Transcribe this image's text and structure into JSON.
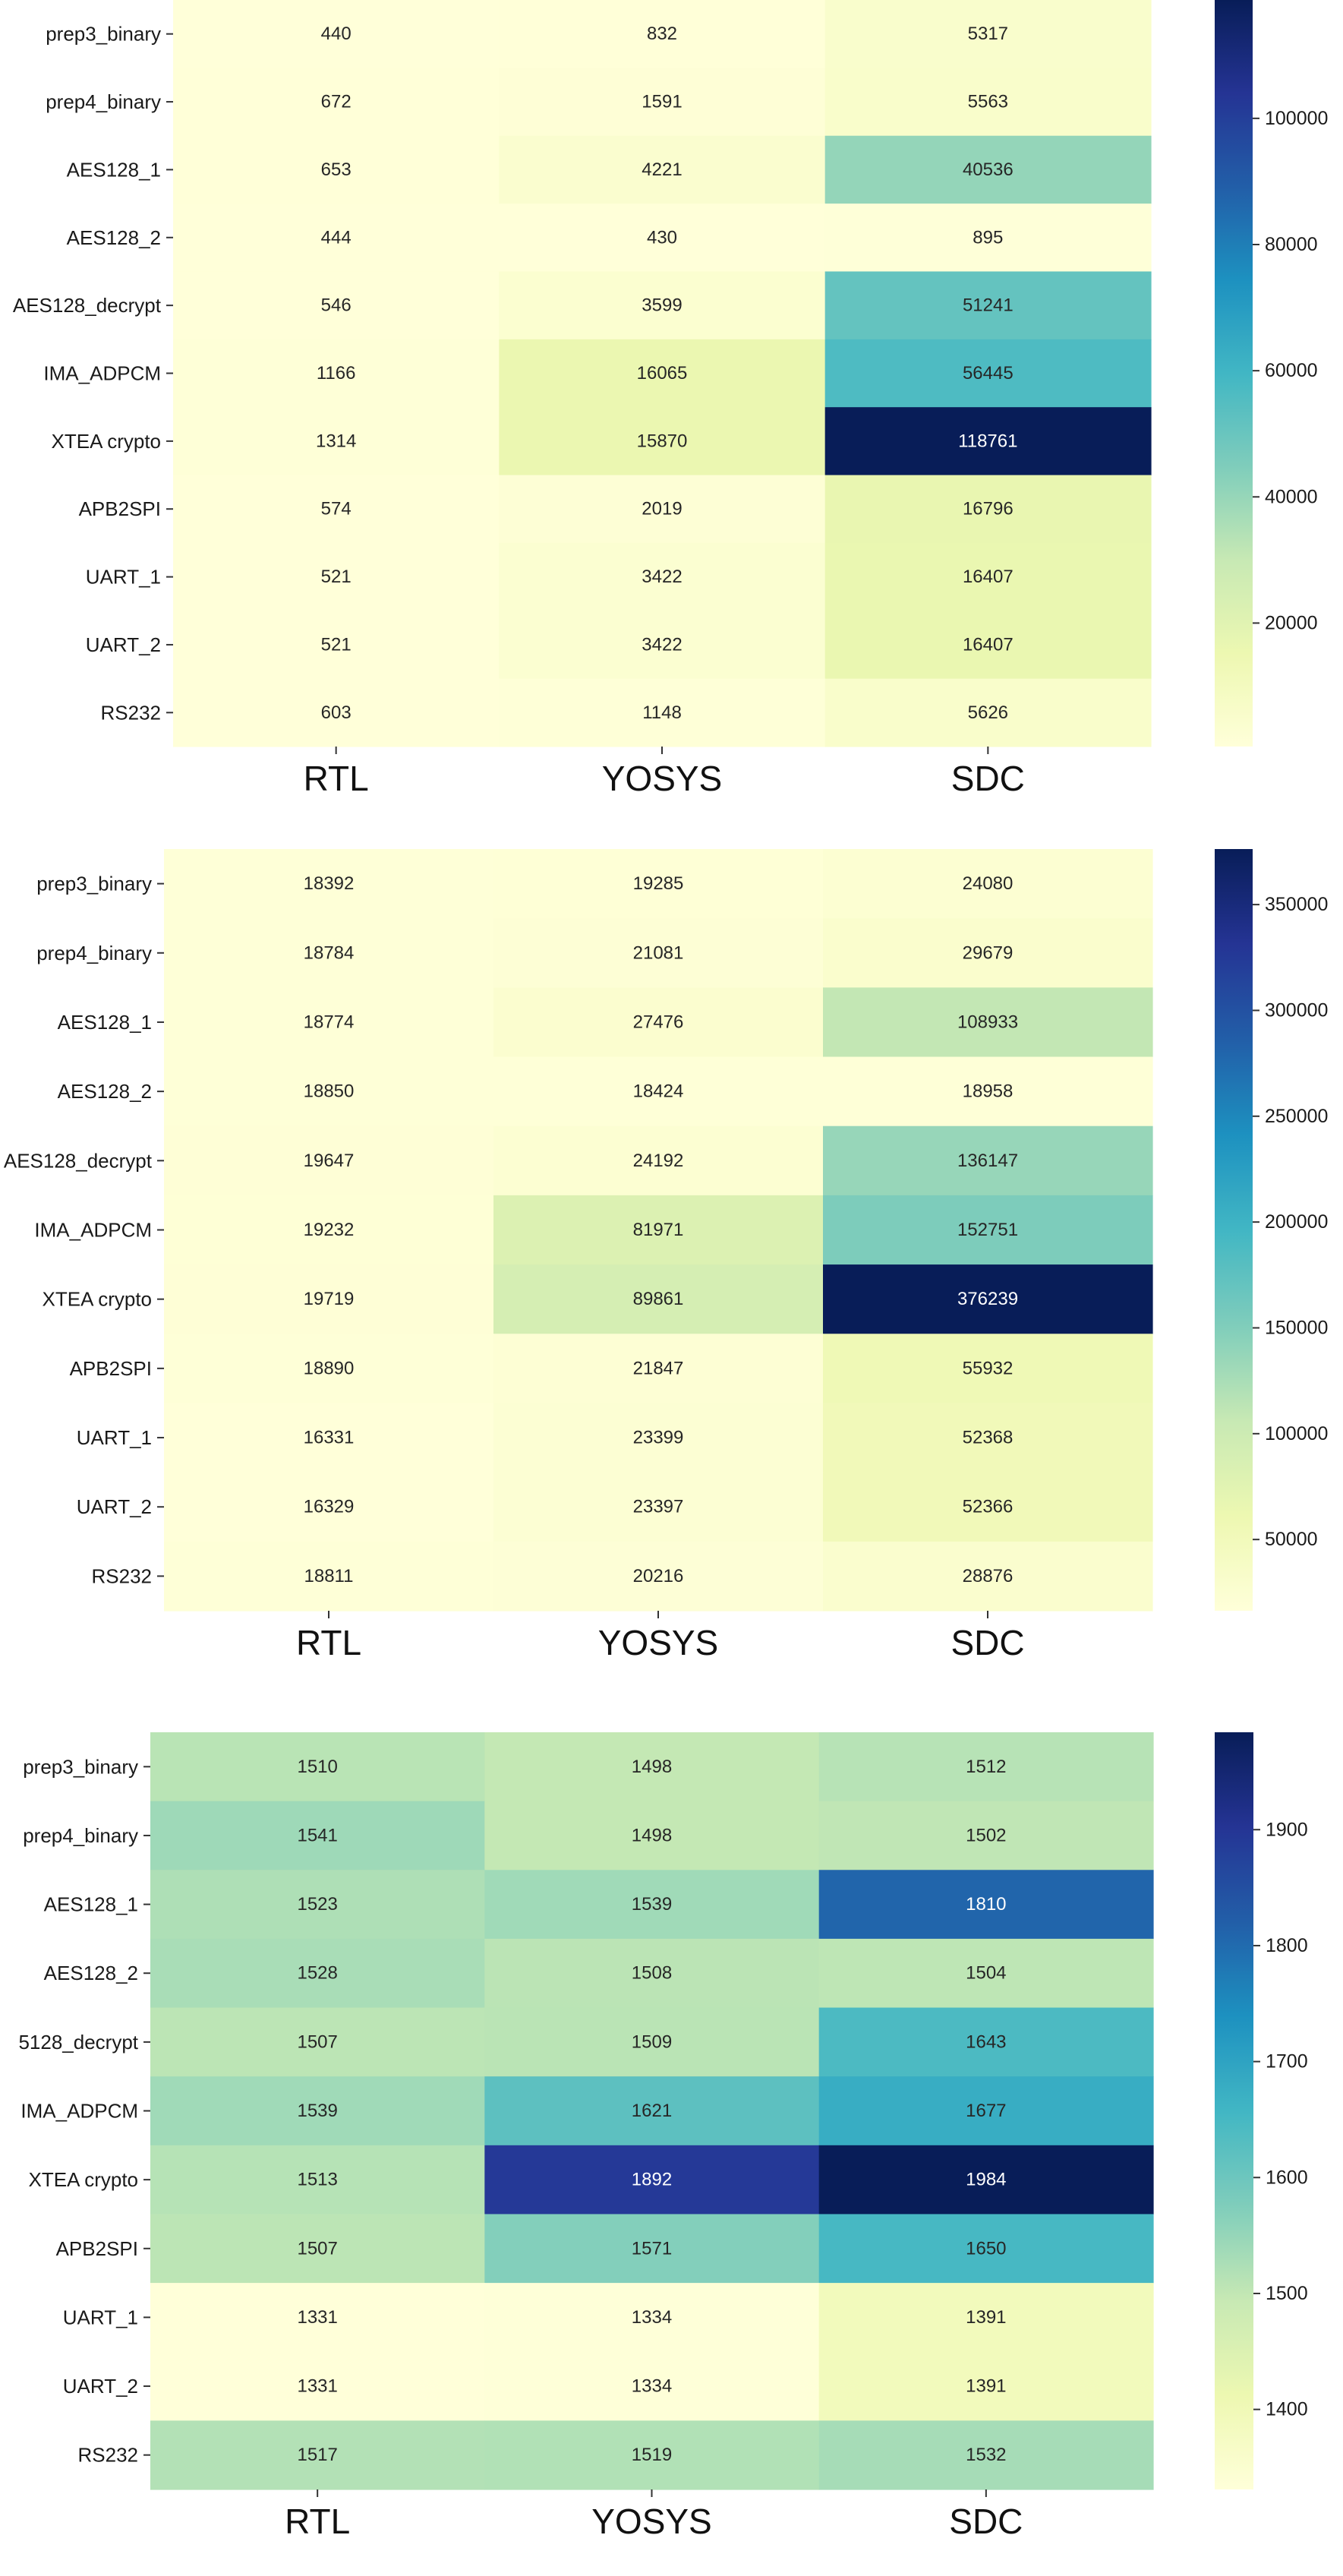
{
  "chart_data": [
    {
      "type": "heatmap",
      "title": "",
      "rows": [
        "prep3_binary",
        "prep4_binary",
        "AES128_1",
        "AES128_2",
        "AES128_decrypt",
        "IMA_ADPCM",
        "XTEA crypto",
        "APB2SPI",
        "UART_1",
        "UART_2",
        "RS232"
      ],
      "columns": [
        "RTL",
        "YOSYS",
        "SDC"
      ],
      "values": [
        [
          440,
          832,
          5317
        ],
        [
          672,
          1591,
          5563
        ],
        [
          653,
          4221,
          40536
        ],
        [
          444,
          430,
          895
        ],
        [
          546,
          3599,
          51241
        ],
        [
          1166,
          16065,
          56445
        ],
        [
          1314,
          15870,
          118761
        ],
        [
          574,
          2019,
          16796
        ],
        [
          521,
          3422,
          16407
        ],
        [
          521,
          3422,
          16407
        ],
        [
          603,
          1148,
          5626
        ]
      ],
      "value_labels": [
        [
          "440",
          "832",
          "5317"
        ],
        [
          "672",
          "1591",
          "5563"
        ],
        [
          "653",
          "4221",
          "40536"
        ],
        [
          "444",
          "430",
          "895"
        ],
        [
          "546",
          "3599",
          "51241"
        ],
        [
          "1166",
          "16065",
          "56445"
        ],
        [
          "1314",
          "15870",
          "118761"
        ],
        [
          "574",
          "2019",
          "16796"
        ],
        [
          "521",
          "3422",
          "16407"
        ],
        [
          "521",
          "3422",
          "16407"
        ],
        [
          "603",
          "1148",
          "5626"
        ]
      ],
      "colorbar": {
        "vmin": 430,
        "vmax": 118761,
        "ticks": [
          20000,
          40000,
          60000,
          80000,
          100000
        ],
        "tick_labels": [
          "20000",
          "40000",
          "60000",
          "80000",
          "100000"
        ]
      },
      "colormap": "YlGnBu"
    },
    {
      "type": "heatmap",
      "title": "",
      "rows": [
        "prep3_binary",
        "prep4_binary",
        "AES128_1",
        "AES128_2",
        "AES128_decrypt",
        "IMA_ADPCM",
        "XTEA crypto",
        "APB2SPI",
        "UART_1",
        "UART_2",
        "RS232"
      ],
      "columns": [
        "RTL",
        "YOSYS",
        "SDC"
      ],
      "values": [
        [
          18392,
          19285,
          24080
        ],
        [
          18784,
          21081,
          29679
        ],
        [
          18774,
          27476,
          108933
        ],
        [
          18850,
          18424,
          18958
        ],
        [
          19647,
          24192,
          136147
        ],
        [
          19232,
          81971,
          152751
        ],
        [
          19719,
          89861,
          376239
        ],
        [
          18890,
          21847,
          55932
        ],
        [
          16331,
          23399,
          52368
        ],
        [
          16329,
          23397,
          52366
        ],
        [
          18811,
          20216,
          28876
        ]
      ],
      "value_labels": [
        [
          "18392",
          "19285",
          "24080"
        ],
        [
          "18784",
          "21081",
          "29679"
        ],
        [
          "18774",
          "27476",
          "108933"
        ],
        [
          "18850",
          "18424",
          "18958"
        ],
        [
          "19647",
          "24192",
          "136147"
        ],
        [
          "19232",
          "81971",
          "152751"
        ],
        [
          "19719",
          "89861",
          "376239"
        ],
        [
          "18890",
          "21847",
          "55932"
        ],
        [
          "16331",
          "23399",
          "52368"
        ],
        [
          "16329",
          "23397",
          "52366"
        ],
        [
          "18811",
          "20216",
          "28876"
        ]
      ],
      "colorbar": {
        "vmin": 16329,
        "vmax": 376239,
        "ticks": [
          50000,
          100000,
          150000,
          200000,
          250000,
          300000,
          350000
        ],
        "tick_labels": [
          "50000",
          "100000",
          "150000",
          "200000",
          "250000",
          "300000",
          "350000"
        ]
      },
      "colormap": "YlGnBu"
    },
    {
      "type": "heatmap",
      "title": "",
      "rows": [
        "prep3_binary",
        "prep4_binary",
        "AES128_1",
        "AES128_2",
        "5128_decrypt",
        "IMA_ADPCM",
        "XTEA crypto",
        "APB2SPI",
        "UART_1",
        "UART_2",
        "RS232"
      ],
      "columns": [
        "RTL",
        "YOSYS",
        "SDC"
      ],
      "values": [
        [
          1510,
          1498,
          1512
        ],
        [
          1541,
          1498,
          1502
        ],
        [
          1523,
          1539,
          1810
        ],
        [
          1528,
          1508,
          1504
        ],
        [
          1507,
          1509,
          1643
        ],
        [
          1539,
          1621,
          1677
        ],
        [
          1513,
          1892,
          1984
        ],
        [
          1507,
          1571,
          1650
        ],
        [
          1331,
          1334,
          1391
        ],
        [
          1331,
          1334,
          1391
        ],
        [
          1517,
          1519,
          1532
        ]
      ],
      "value_labels": [
        [
          "1510",
          "1498",
          "1512"
        ],
        [
          "1541",
          "1498",
          "1502"
        ],
        [
          "1523",
          "1539",
          "1810"
        ],
        [
          "1528",
          "1508",
          "1504"
        ],
        [
          "1507",
          "1509",
          "1643"
        ],
        [
          "1539",
          "1621",
          "1677"
        ],
        [
          "1513",
          "1892",
          "1984"
        ],
        [
          "1507",
          "1571",
          "1650"
        ],
        [
          "1331",
          "1334",
          "1391"
        ],
        [
          "1331",
          "1334",
          "1391"
        ],
        [
          "1517",
          "1519",
          "1532"
        ]
      ],
      "colorbar": {
        "vmin": 1331,
        "vmax": 1984,
        "ticks": [
          1400,
          1500,
          1600,
          1700,
          1800,
          1900
        ],
        "tick_labels": [
          "1400",
          "1500",
          "1600",
          "1700",
          "1800",
          "1900"
        ]
      },
      "colormap": "YlGnBu"
    }
  ]
}
